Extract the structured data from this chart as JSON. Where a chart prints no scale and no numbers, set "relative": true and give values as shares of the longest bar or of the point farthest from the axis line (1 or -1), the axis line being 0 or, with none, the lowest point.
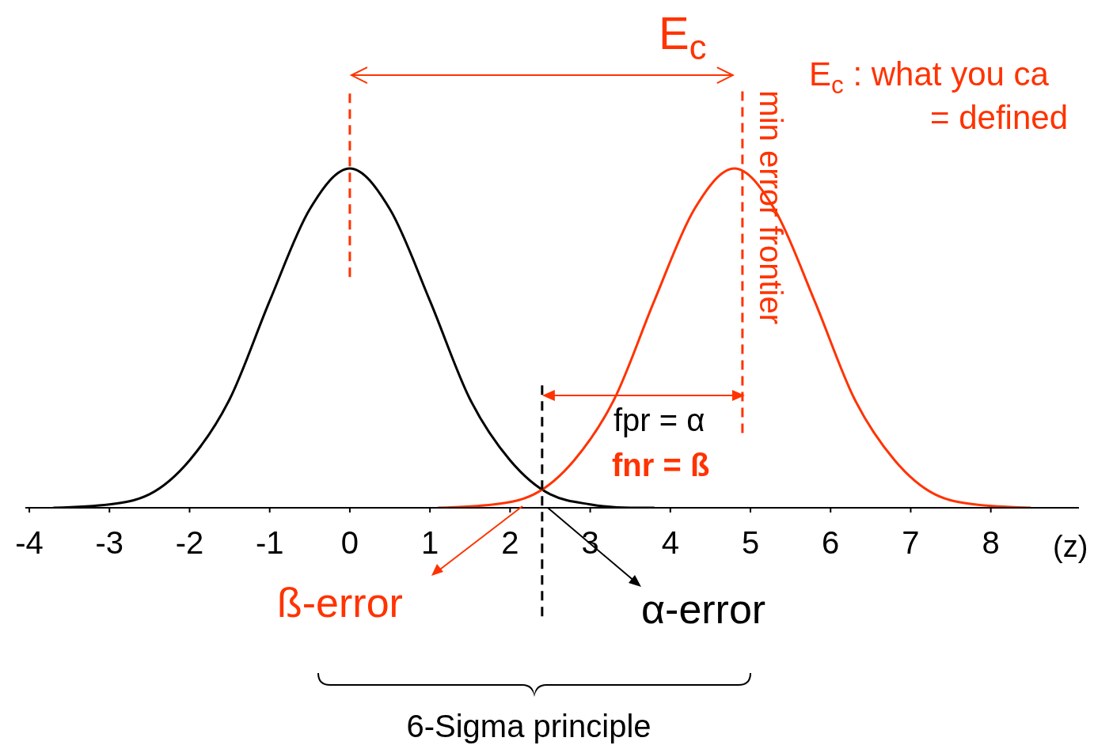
{
  "chart_data": {
    "type": "line",
    "relative": true,
    "xlabel": "(z)",
    "xlim": [
      -4.05,
      9.1
    ],
    "xticks": [
      -4,
      -3,
      -2,
      -1,
      0,
      1,
      2,
      3,
      4,
      5,
      6,
      7,
      8
    ],
    "grid": false,
    "legend": false,
    "marker": "none",
    "line_style": "solid",
    "series": [
      {
        "color": "#000000",
        "x": [
          -3.7,
          -3,
          -2.5,
          -2,
          -1.5,
          -1,
          -0.5,
          0,
          0.5,
          1,
          1.5,
          2,
          2.5,
          3,
          3.5,
          3.8
        ],
        "values": [
          0,
          0.01,
          0.04,
          0.14,
          0.32,
          0.61,
          0.88,
          1,
          0.88,
          0.61,
          0.32,
          0.14,
          0.04,
          0.01,
          0,
          0
        ]
      },
      {
        "color": "#ff3300",
        "x": [
          1.1,
          1.8,
          2.3,
          2.8,
          3.3,
          3.8,
          4.3,
          4.8,
          5.3,
          5.8,
          6.3,
          6.8,
          7.3,
          7.8,
          8.5
        ],
        "values": [
          0,
          0.01,
          0.04,
          0.14,
          0.32,
          0.61,
          0.88,
          1,
          0.88,
          0.61,
          0.32,
          0.14,
          0.04,
          0.01,
          0
        ]
      }
    ],
    "ref_lines": [
      {
        "axis": "x",
        "value": 2.4,
        "color": "#000000",
        "line_style": "dashed"
      },
      {
        "axis": "x",
        "value": 0,
        "color": "#ff3300",
        "line_style": "dashed"
      },
      {
        "axis": "x",
        "value": 4.9,
        "color": "#ff3300",
        "line_style": "dashed",
        "label": "min error frontier"
      }
    ],
    "annotations": [
      "E$_{c}$",
      "E$_{c}$ : what you ca",
      "= defined",
      "fpr = α",
      "fnr = ß",
      "ß-error",
      "α-error",
      "6-Sigma principle"
    ]
  }
}
